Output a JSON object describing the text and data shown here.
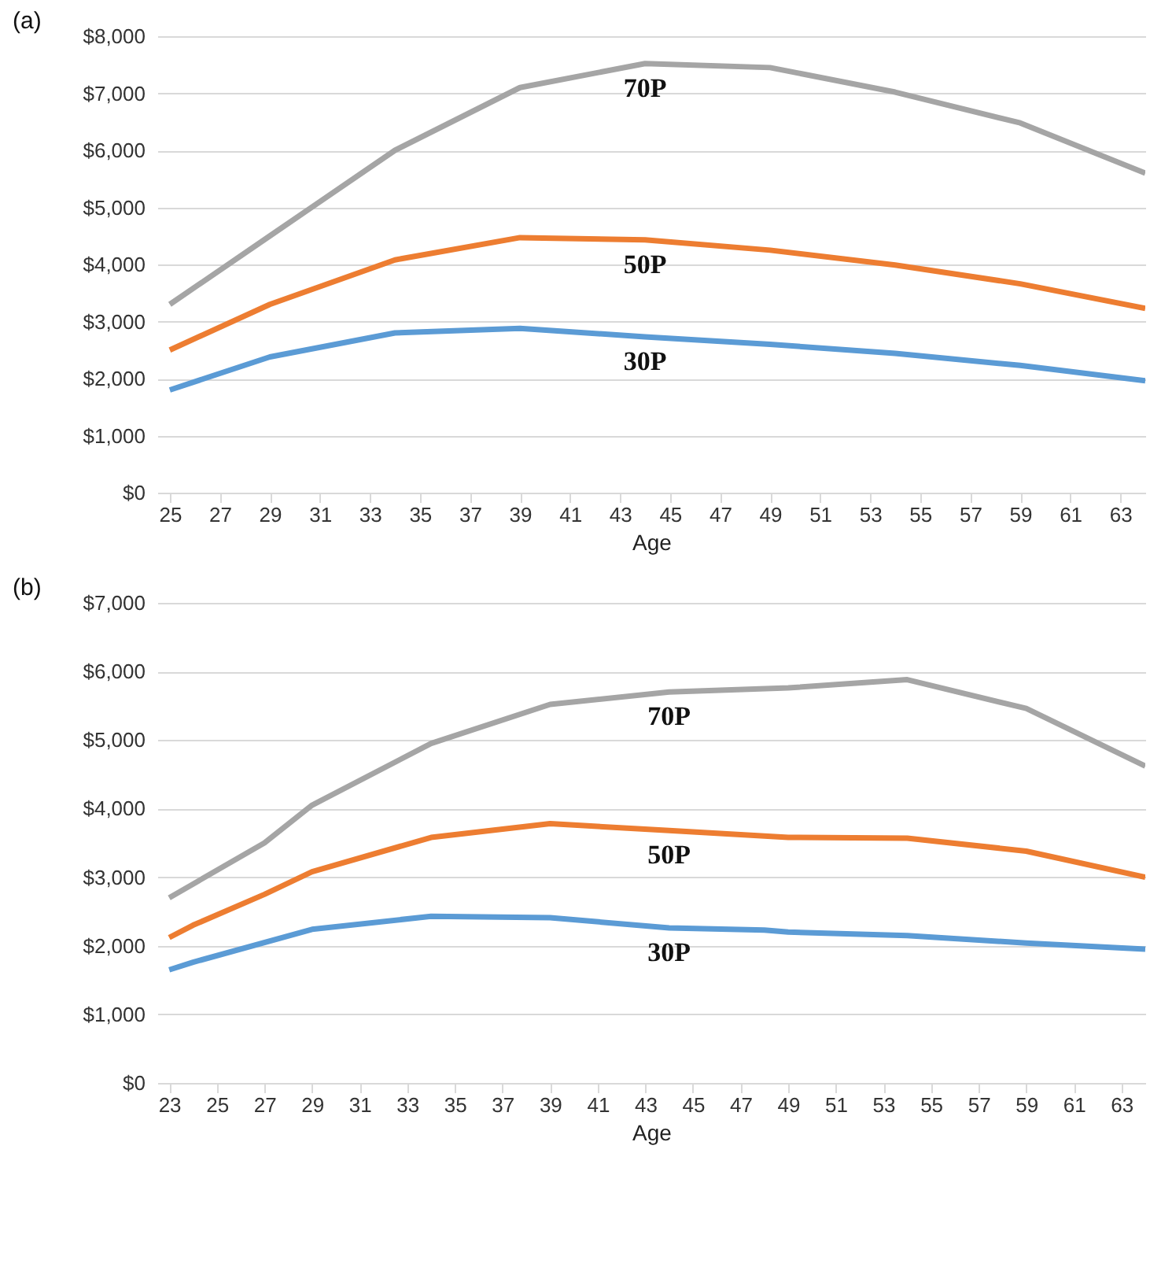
{
  "chart_data": [
    {
      "type": "line",
      "title": "(a)",
      "xlabel": "Age",
      "xlim": [
        24.5,
        64
      ],
      "xticks": [
        25,
        27,
        29,
        31,
        33,
        35,
        37,
        39,
        41,
        43,
        45,
        47,
        49,
        51,
        53,
        55,
        57,
        59,
        61,
        63
      ],
      "ylim": [
        0,
        8000
      ],
      "yticks": [
        {
          "value": 0,
          "label": "$0"
        },
        {
          "value": 1000,
          "label": "$1,000"
        },
        {
          "value": 2000,
          "label": "$2,000"
        },
        {
          "value": 3000,
          "label": "$3,000"
        },
        {
          "value": 4000,
          "label": "$4,000"
        },
        {
          "value": 5000,
          "label": "$5,000"
        },
        {
          "value": 6000,
          "label": "$6,000"
        },
        {
          "value": 7000,
          "label": "$7,000"
        },
        {
          "value": 8000,
          "label": "$8,000"
        }
      ],
      "grid": "y",
      "legend": false,
      "series": [
        {
          "name": "70P",
          "color": "#a5a5a5",
          "x": [
            25,
            29,
            34,
            39,
            44,
            49,
            54,
            59,
            64
          ],
          "values": [
            3300,
            4500,
            6000,
            7100,
            7520,
            7450,
            7020,
            6480,
            5600
          ]
        },
        {
          "name": "50P",
          "color": "#ed7d31",
          "x": [
            25,
            29,
            34,
            39,
            44,
            49,
            54,
            59,
            64
          ],
          "values": [
            2500,
            3300,
            4080,
            4470,
            4430,
            4250,
            3990,
            3660,
            3230
          ]
        },
        {
          "name": "30P",
          "color": "#5b9bd5",
          "x": [
            25,
            29,
            34,
            39,
            44,
            49,
            54,
            59,
            64
          ],
          "values": [
            1800,
            2380,
            2800,
            2880,
            2730,
            2600,
            2440,
            2230,
            1960
          ]
        }
      ]
    },
    {
      "type": "line",
      "title": "(b)",
      "xlabel": "Age",
      "xlim": [
        22.5,
        64
      ],
      "xticks": [
        23,
        25,
        27,
        29,
        31,
        33,
        35,
        37,
        39,
        41,
        43,
        45,
        47,
        49,
        51,
        53,
        55,
        57,
        59,
        61,
        63
      ],
      "ylim": [
        0,
        7000
      ],
      "yticks": [
        {
          "value": 0,
          "label": "$0"
        },
        {
          "value": 1000,
          "label": "$1,000"
        },
        {
          "value": 2000,
          "label": "$2,000"
        },
        {
          "value": 3000,
          "label": "$3,000"
        },
        {
          "value": 4000,
          "label": "$4,000"
        },
        {
          "value": 5000,
          "label": "$5,000"
        },
        {
          "value": 6000,
          "label": "$6,000"
        },
        {
          "value": 7000,
          "label": "$7,000"
        }
      ],
      "grid": "y",
      "legend": false,
      "series": [
        {
          "name": "70P",
          "color": "#a5a5a5",
          "x": [
            23,
            27,
            29,
            34,
            39,
            44,
            49,
            54,
            59,
            64
          ],
          "values": [
            2700,
            3500,
            4050,
            4950,
            5520,
            5700,
            5760,
            5880,
            5460,
            4620
          ]
        },
        {
          "name": "50P",
          "color": "#ed7d31",
          "x": [
            23,
            24,
            27,
            29,
            34,
            39,
            44,
            48,
            49,
            54,
            59,
            64
          ],
          "values": [
            2120,
            2300,
            2750,
            3080,
            3580,
            3780,
            3680,
            3600,
            3580,
            3570,
            3380,
            3000
          ]
        },
        {
          "name": "30P",
          "color": "#5b9bd5",
          "x": [
            23,
            24,
            29,
            34,
            39,
            44,
            48,
            49,
            54,
            59,
            64
          ],
          "values": [
            1650,
            1760,
            2240,
            2430,
            2410,
            2260,
            2230,
            2200,
            2150,
            2040,
            1950
          ]
        }
      ]
    }
  ]
}
